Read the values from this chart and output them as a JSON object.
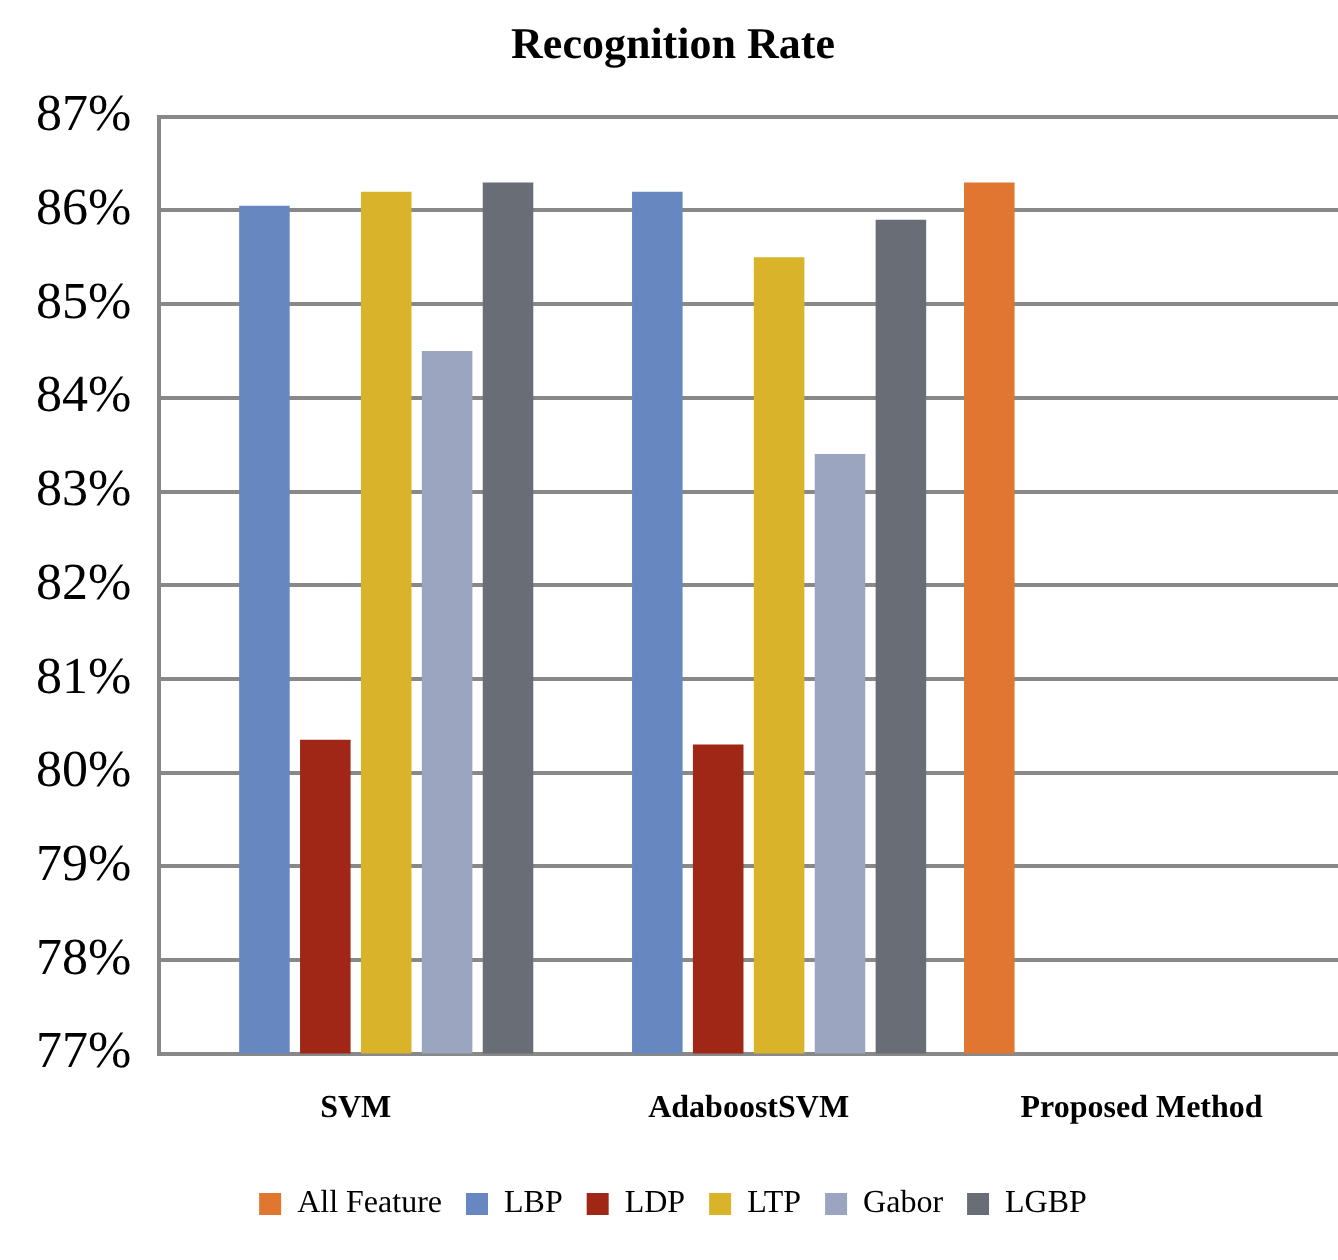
{
  "chart_data": {
    "type": "bar",
    "title": "Recognition Rate",
    "categories": [
      "SVM",
      "AdaboostSVM",
      "Proposed Method"
    ],
    "series": [
      {
        "name": "All Feature",
        "color": "#e07630",
        "values": [
          null,
          null,
          86.3
        ]
      },
      {
        "name": "LBP",
        "color": "#6787c1",
        "values": [
          86.05,
          86.2,
          null
        ]
      },
      {
        "name": "LDP",
        "color": "#a02716",
        "values": [
          80.35,
          80.3,
          null
        ]
      },
      {
        "name": "LTP",
        "color": "#d9b32a",
        "values": [
          86.2,
          85.5,
          null
        ]
      },
      {
        "name": "Gabor",
        "color": "#9ba5c0",
        "values": [
          84.5,
          83.4,
          null
        ]
      },
      {
        "name": "LGBP",
        "color": "#696d75",
        "values": [
          86.3,
          85.9,
          null
        ]
      }
    ],
    "ylim": [
      77,
      87
    ],
    "yticks": [
      {
        "value": 77,
        "label": "77%"
      },
      {
        "value": 78,
        "label": "78%"
      },
      {
        "value": 79,
        "label": "79%"
      },
      {
        "value": 80,
        "label": "80%"
      },
      {
        "value": 81,
        "label": "81%"
      },
      {
        "value": 82,
        "label": "82%"
      },
      {
        "value": 83,
        "label": "83%"
      },
      {
        "value": 84,
        "label": "84%"
      },
      {
        "value": 85,
        "label": "85%"
      },
      {
        "value": 86,
        "label": "86%"
      },
      {
        "value": 87,
        "label": "87%"
      }
    ],
    "grid": "y",
    "legend": "bottom"
  }
}
